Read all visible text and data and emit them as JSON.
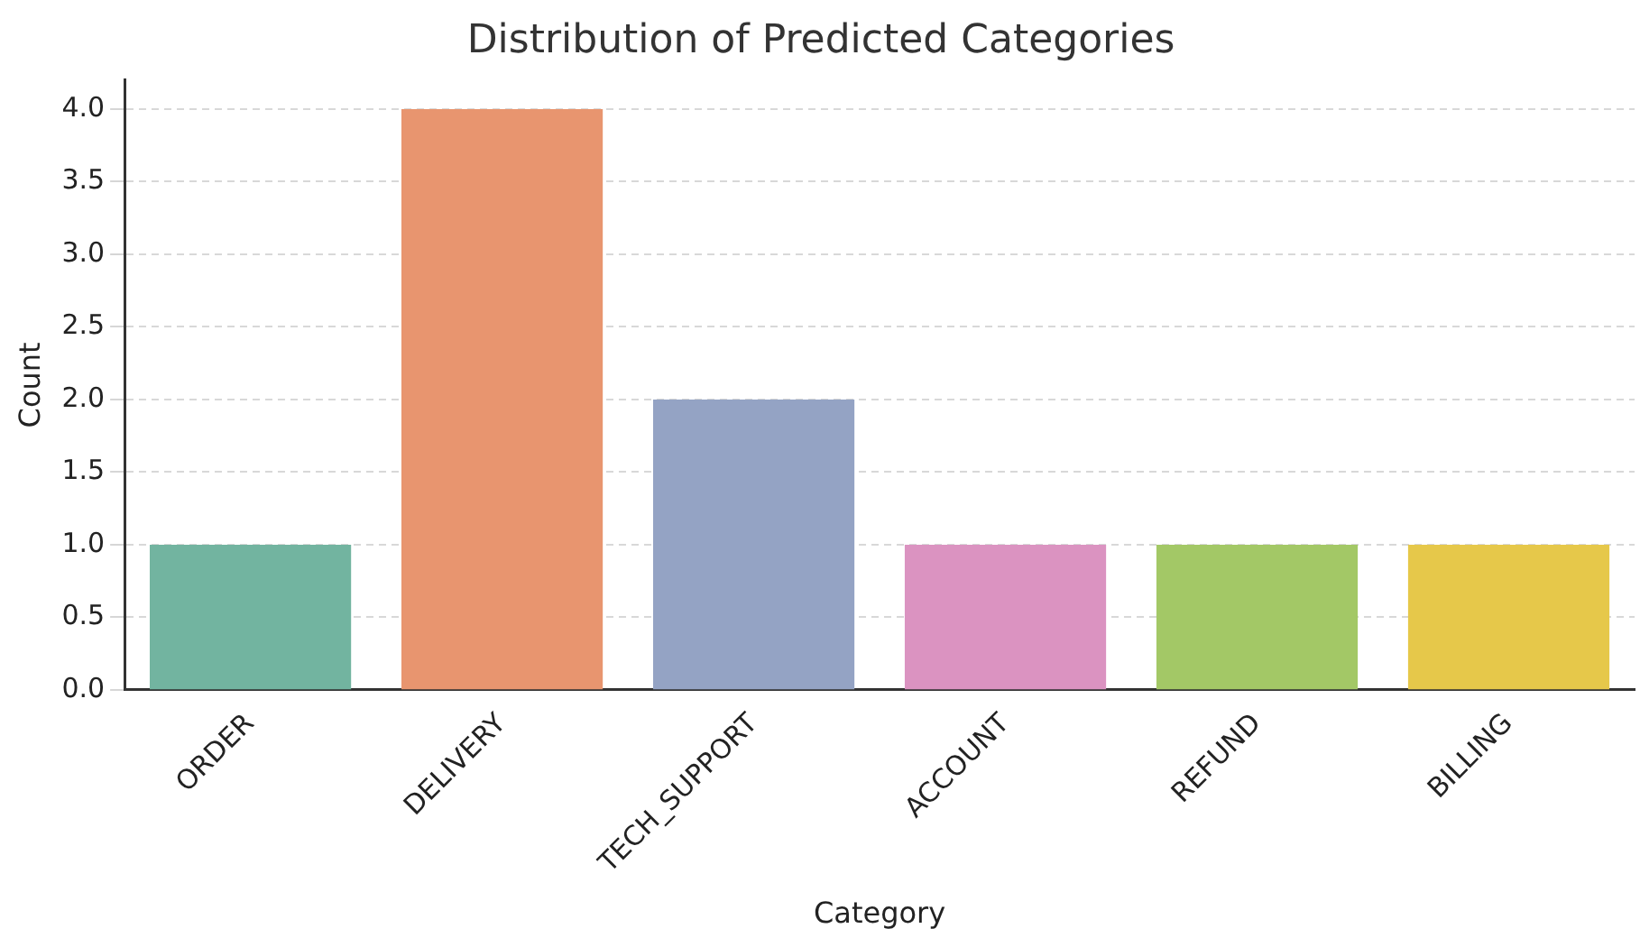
{
  "chart_data": {
    "type": "bar",
    "title": "Distribution of Predicted Categories",
    "xlabel": "Category",
    "ylabel": "Count",
    "categories": [
      "ORDER",
      "DELIVERY",
      "TECH_SUPPORT",
      "ACCOUNT",
      "REFUND",
      "BILLING"
    ],
    "values": [
      1,
      4,
      2,
      1,
      1,
      1
    ],
    "colors": [
      "#72b4a0",
      "#e8956f",
      "#94a3c4",
      "#db93c1",
      "#a3c866",
      "#e6c84a"
    ],
    "ylim": [
      0,
      4.2
    ],
    "yticks": [
      {
        "value": 0,
        "label": "0.0"
      },
      {
        "value": 0.5,
        "label": "0.5"
      },
      {
        "value": 1,
        "label": "1.0"
      },
      {
        "value": 1.5,
        "label": "1.5"
      },
      {
        "value": 2,
        "label": "2.0"
      },
      {
        "value": 2.5,
        "label": "2.5"
      },
      {
        "value": 3,
        "label": "3.0"
      },
      {
        "value": 3.5,
        "label": "3.5"
      },
      {
        "value": 4,
        "label": "4.0"
      }
    ],
    "grid": "y"
  }
}
